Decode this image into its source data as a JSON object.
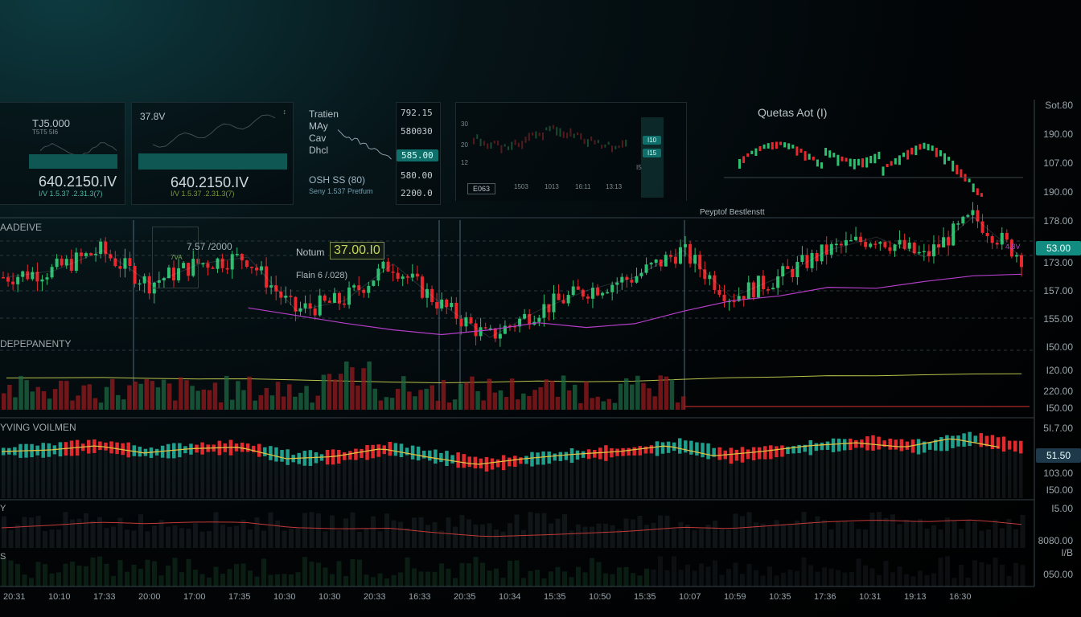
{
  "colors": {
    "up": "#2fbf71",
    "down": "#e8282d",
    "ma_purple": "#b43ec9",
    "ma_olive": "#b8c24a",
    "ma_red": "#c23a3a",
    "accent_teal": "#13938a",
    "grid": "#2b383e"
  },
  "mini_panels": [
    {
      "top_label": "TJ5.000",
      "sub_label": "T5T5 5I6",
      "big_value": "640.2150.IV",
      "small_text": "I/V  1.5.37  .2.31.3(7)"
    },
    {
      "top_label": "37.8V",
      "corner": "↕",
      "big_value": "640.2150.IV",
      "small_text": "I/V  1.5.37  .2.31.3(7)"
    },
    {
      "title_lines": [
        "Tratien",
        "MAy",
        "Cav",
        "Dhcl"
      ],
      "footer": "OSH SS (80)",
      "footer_small": "Seny   1.537  Pretfum"
    },
    {
      "values": [
        "792.15",
        "580030",
        "585.00",
        "580.00",
        "2200.0"
      ],
      "highlight_index": 2
    },
    {
      "title": "Quetas Aot (I)"
    }
  ],
  "mid_mini": {
    "y_labels": [
      "30",
      "20",
      "12"
    ],
    "x_labels": [
      "1503",
      "1013",
      "16:11",
      "13:13"
    ],
    "side_tags": [
      "I10",
      "I15",
      "I5"
    ],
    "button": "E063"
  },
  "section_labels": {
    "main": "AADEIVE",
    "dependency": "DEPEPANENTY",
    "volume": "YVING VOILMEN",
    "sub1": "Y",
    "sub2": "S"
  },
  "annotations": {
    "crosshair_label": "7.57 /2000",
    "crosshair_sub": "7VA",
    "notum_label": "Notum",
    "notum_value": "37.00.I0",
    "flain_label": "Flain 6 /.028)",
    "peyptot": "Peyptof Bestlenstt",
    "ma_tag": "4.8V"
  },
  "y_axis_main": [
    "Sot.80",
    "190.00",
    "107.00",
    "190.00",
    "178.00",
    "173.00",
    "157.00",
    "155.00",
    "I50.00",
    "I20.00",
    "220.00",
    "I50.00"
  ],
  "y_axis_volume": [
    "5I.7.00",
    "103.00",
    "I50.00"
  ],
  "y_axis_sub": [
    "I5.00",
    "8080.00",
    "I/B",
    "050.00"
  ],
  "price_tags": {
    "main": "53.00",
    "volume": "51.50"
  },
  "x_axis": [
    "20:31",
    "10:10",
    "17:33",
    "20:00",
    "17:00",
    "17:35",
    "10:30",
    "10:30",
    "20:33",
    "16:33",
    "20:35",
    "10:34",
    "15:35",
    "10:50",
    "15:35",
    "10:07",
    "10:59",
    "10:35",
    "17:36",
    "10:31",
    "19:13",
    "16:30"
  ],
  "chart_data": {
    "type": "line",
    "title": "",
    "x": [
      "20:31",
      "10:10",
      "17:33",
      "20:00",
      "17:00",
      "17:35",
      "10:30",
      "10:30",
      "20:33",
      "16:33",
      "20:35",
      "10:34",
      "15:35",
      "10:50",
      "15:35",
      "10:07",
      "10:59",
      "10:35",
      "17:36",
      "10:31",
      "19:13",
      "16:30"
    ],
    "series": [
      {
        "values": [
          170,
          172,
          178,
          168,
          174,
          176,
          160,
          163,
          174,
          162,
          152,
          160,
          166,
          170,
          178,
          164,
          170,
          178,
          182,
          176,
          188,
          176
        ]
      }
    ],
    "ylim": [
      140,
      200
    ],
    "grid": true
  }
}
